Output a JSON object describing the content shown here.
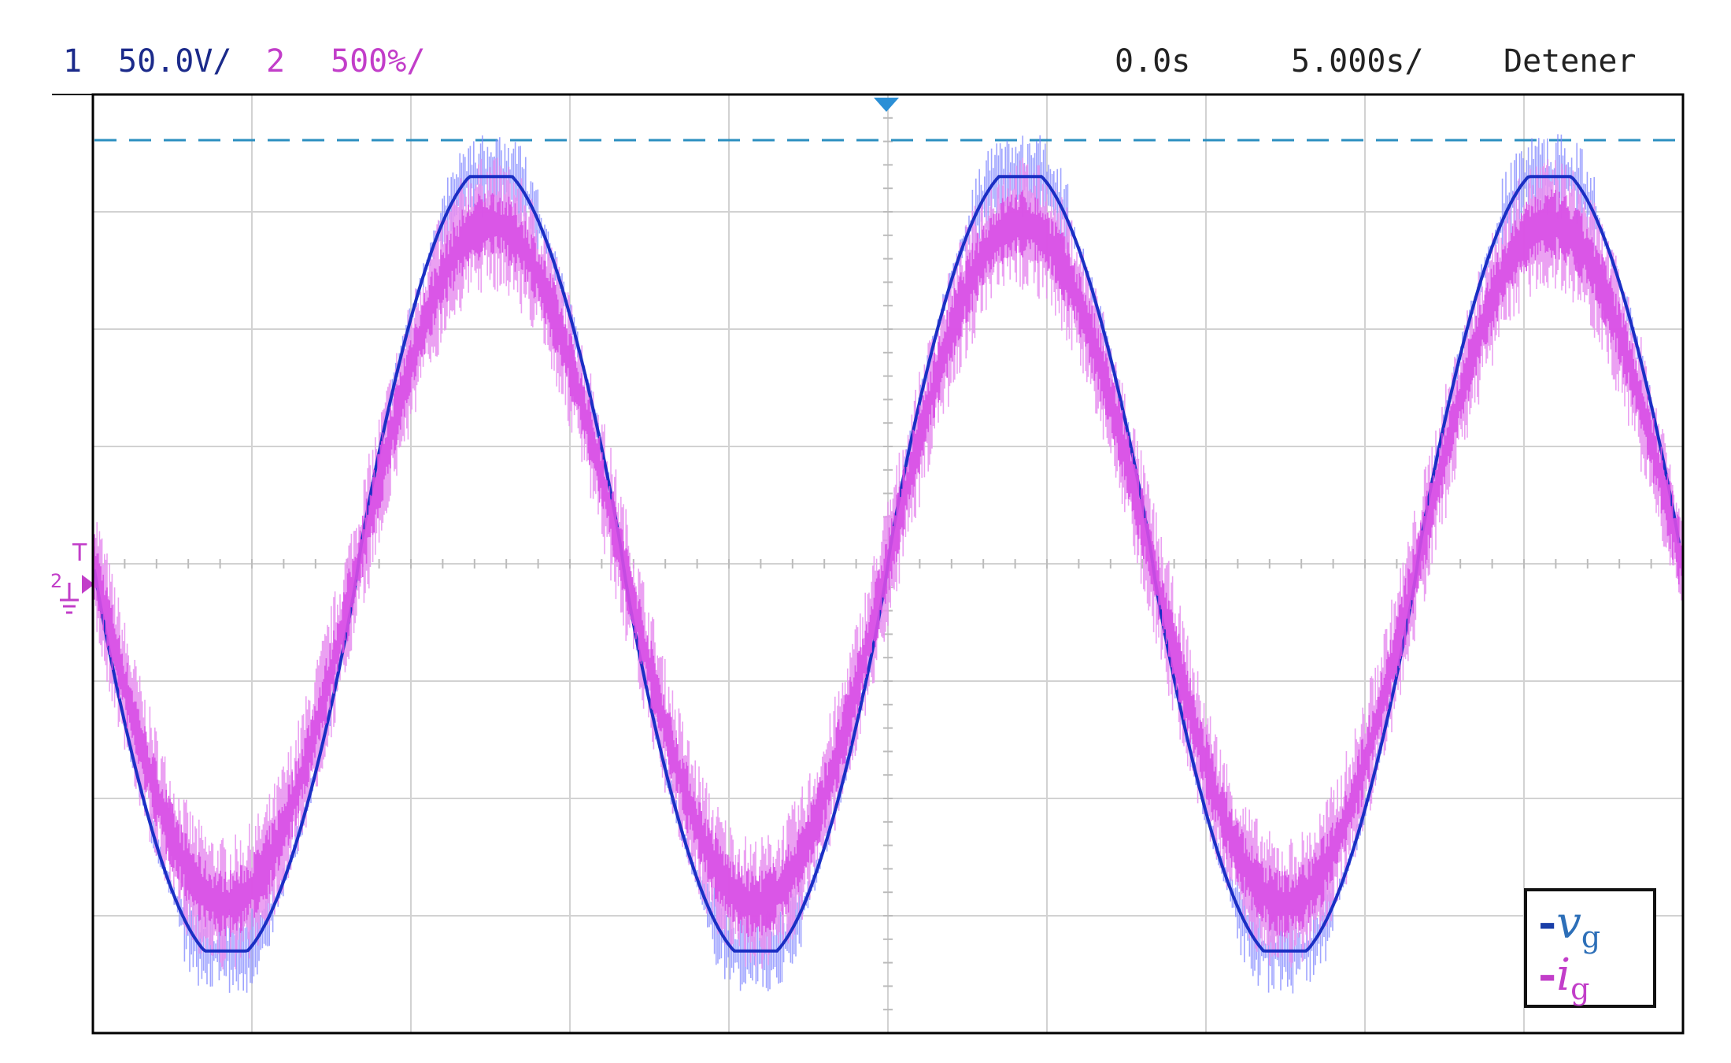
{
  "status_bar": {
    "ch1_number": "1",
    "ch1_scale": "50.0V/",
    "ch2_number": "2",
    "ch2_scale": "500%/",
    "time_offset": "0.0s",
    "time_scale": "5.000s/",
    "run_state": "Detener"
  },
  "markers": {
    "trigger_label": "T",
    "channel_ground_label": "2"
  },
  "legend": {
    "v_symbol": "v",
    "v_subscript": "g",
    "i_symbol": "i",
    "i_subscript": "g",
    "dash": "-"
  },
  "colors": {
    "ch1_trace": "#1a2fc4",
    "ch1_noise": "#7f86ff",
    "ch2_trace": "#d84ee6",
    "ch2_noise": "#e890f0",
    "grid": "#d2d2d2",
    "trigger_level": "#2b8fc0",
    "trigger_arrow": "#2b8fd6",
    "ch2_label": "#c23ec9",
    "ch1_label": "#1b2a8a"
  },
  "icons": {
    "trigger_position": "down-triangle-icon",
    "ground_marker": "ground-arrow-icon"
  },
  "chart_data": {
    "type": "line",
    "x_axis": {
      "divisions": 10,
      "units_per_div": "5.000s/"
    },
    "y_axis": {
      "divisions": 8
    },
    "series": [
      {
        "channel": 1,
        "legend": "v_g",
        "cycles_shown": 3,
        "period_divisions": 3.33,
        "amplitude_divisions": 3.3,
        "peak_clip_divisions": 3.3,
        "zero_crossing_rising_div": [
          1.75,
          5.0,
          8.33
        ]
      },
      {
        "channel": 2,
        "legend": "i_g",
        "cycles_shown": 3,
        "period_divisions": 3.33,
        "amplitude_divisions": 2.9,
        "zero_crossing_rising_div": [
          1.75,
          5.0,
          8.33
        ]
      }
    ],
    "trigger_level_divisions": 3.62,
    "grid": true
  }
}
